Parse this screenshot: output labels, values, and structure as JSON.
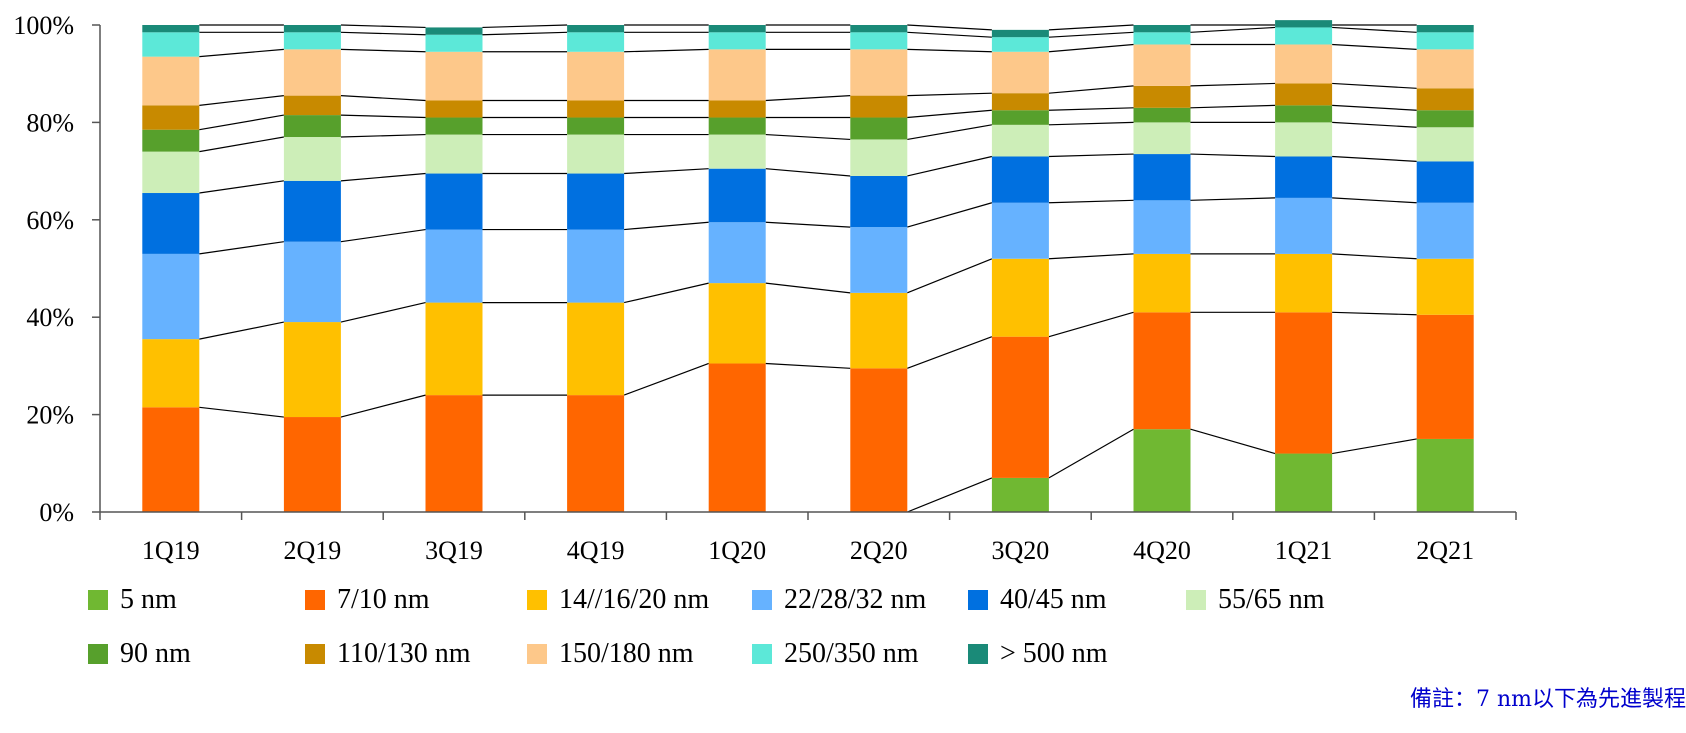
{
  "chart_data": {
    "type": "bar",
    "stacked": true,
    "normalized": true,
    "categories": [
      "1Q19",
      "2Q19",
      "3Q19",
      "4Q19",
      "1Q20",
      "2Q20",
      "3Q20",
      "4Q20",
      "1Q21",
      "2Q21"
    ],
    "ylim": [
      0,
      100
    ],
    "yticks": [
      "0%",
      "20%",
      "40%",
      "60%",
      "80%",
      "100%"
    ],
    "ytick_values": [
      0,
      20,
      40,
      60,
      80,
      100
    ],
    "connector_lines": true,
    "legend_position": "bottom",
    "series": [
      {
        "name": "5 nm",
        "color": "#70b832",
        "values": [
          0,
          0,
          0,
          0,
          0,
          0,
          7,
          17,
          12,
          15
        ]
      },
      {
        "name": "7/10 nm",
        "color": "#ff6600",
        "values": [
          21.5,
          19.5,
          24,
          24,
          30.5,
          29.5,
          29,
          24,
          29,
          25.5
        ]
      },
      {
        "name": "14//16/20 nm",
        "color": "#ffc000",
        "values": [
          14,
          19.5,
          19,
          19,
          16.5,
          15.5,
          16,
          12,
          12,
          11.5
        ]
      },
      {
        "name": "22/28/32 nm",
        "color": "#66b2ff",
        "values": [
          17.5,
          16.5,
          15,
          15,
          12.5,
          13.5,
          11.5,
          11,
          11.5,
          11.5
        ]
      },
      {
        "name": "40/45 nm",
        "color": "#0070e0",
        "values": [
          12.5,
          12.5,
          11.5,
          11.5,
          11,
          10.5,
          9.5,
          9.5,
          8.5,
          8.5
        ]
      },
      {
        "name": "55/65 nm",
        "color": "#cdeeb8",
        "values": [
          8.5,
          9,
          8,
          8,
          7,
          7.5,
          6.5,
          6.5,
          7,
          7
        ]
      },
      {
        "name": "90 nm",
        "color": "#57a02c",
        "values": [
          4.5,
          4.5,
          3.5,
          3.5,
          3.5,
          4.5,
          3,
          3,
          3.5,
          3.5
        ]
      },
      {
        "name": "110/130 nm",
        "color": "#c88a00",
        "values": [
          5,
          4,
          3.5,
          3.5,
          3.5,
          4.5,
          3.5,
          4.5,
          4.5,
          4.5
        ]
      },
      {
        "name": "150/180 nm",
        "color": "#fdc88a",
        "values": [
          10,
          9.5,
          10,
          10,
          10.5,
          9.5,
          8.5,
          8.5,
          8,
          8
        ]
      },
      {
        "name": "250/350 nm",
        "color": "#5ce8d8",
        "values": [
          5,
          3.5,
          3.5,
          4,
          3.5,
          3.5,
          3,
          2.5,
          3.5,
          3.5
        ]
      },
      {
        "name": "> 500 nm",
        "color": "#1a8a78",
        "values": [
          1.5,
          1.5,
          1.5,
          1.5,
          1.5,
          1.5,
          1.5,
          1.5,
          1.5,
          1.5
        ]
      }
    ]
  },
  "footnote": "備註：7 nm以下為先進製程"
}
